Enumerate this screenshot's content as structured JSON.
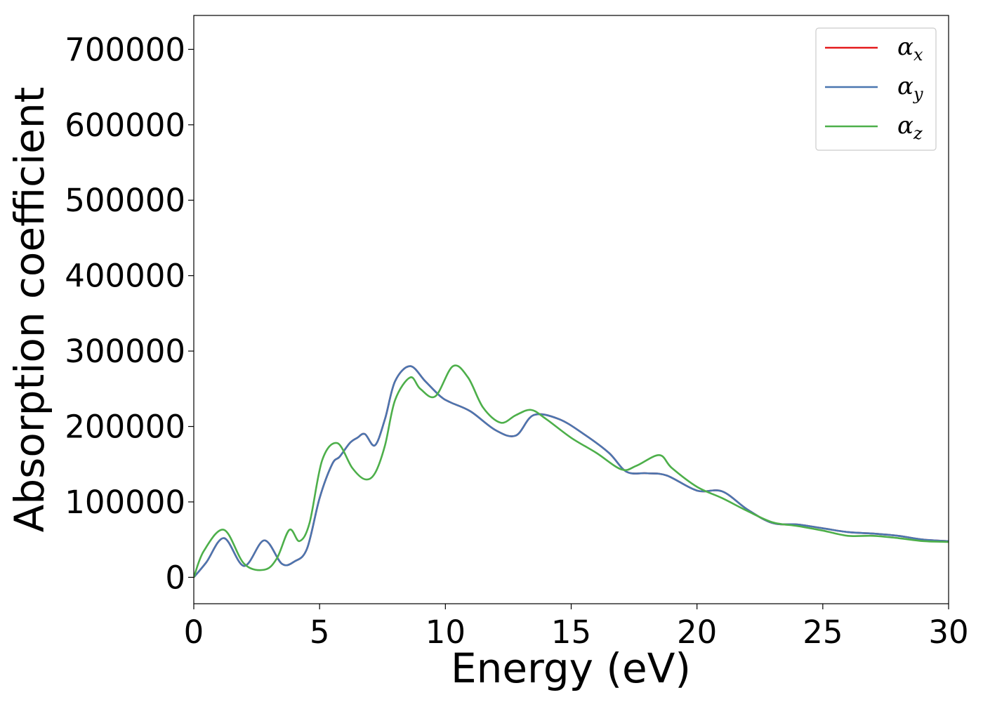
{
  "chart_data": {
    "type": "line",
    "title": "",
    "xlabel": "Energy (eV)",
    "ylabel": "Absorption coefficient",
    "xlim": [
      0,
      30
    ],
    "ylim": [
      -35000,
      745000
    ],
    "xticks": [
      0,
      5,
      10,
      15,
      20,
      25,
      30
    ],
    "xtick_labels": [
      "0",
      "5",
      "10",
      "15",
      "20",
      "25",
      "30"
    ],
    "yticks": [
      0,
      100000,
      200000,
      300000,
      400000,
      500000,
      600000,
      700000
    ],
    "ytick_labels": [
      "0",
      "100000",
      "200000",
      "300000",
      "400000",
      "500000",
      "600000",
      "700000"
    ],
    "grid": false,
    "legend_position": "top-right",
    "series": [
      {
        "name": "α",
        "subscript": "x",
        "color": "#e41a1c",
        "x": [
          0,
          0.5,
          1.2,
          2.0,
          2.8,
          3.5,
          4.0,
          4.5,
          5.0,
          5.5,
          5.8,
          6.2,
          6.5,
          6.8,
          7.2,
          7.6,
          8.0,
          8.6,
          9.2,
          9.8,
          10.2,
          11.0,
          12.0,
          12.8,
          13.5,
          14.5,
          15.5,
          16.5,
          17.2,
          18.0,
          18.8,
          20.0,
          21.0,
          22.0,
          23.0,
          24.0,
          25.0,
          26.0,
          27.0,
          28.0,
          29.0,
          30.0
        ],
        "y": [
          0,
          20000,
          52000,
          15000,
          49000,
          18000,
          21000,
          38000,
          105000,
          150000,
          160000,
          178000,
          185000,
          190000,
          175000,
          210000,
          260000,
          280000,
          260000,
          240000,
          232000,
          220000,
          195000,
          188000,
          215000,
          210000,
          190000,
          165000,
          140000,
          138000,
          135000,
          115000,
          114000,
          90000,
          72000,
          70000,
          65000,
          60000,
          58000,
          55000,
          50000,
          48000
        ]
      },
      {
        "name": "α",
        "subscript": "y",
        "color": "#4a76b0",
        "x": [
          0,
          0.5,
          1.2,
          2.0,
          2.8,
          3.5,
          4.0,
          4.5,
          5.0,
          5.5,
          5.8,
          6.2,
          6.5,
          6.8,
          7.2,
          7.6,
          8.0,
          8.6,
          9.2,
          9.8,
          10.2,
          11.0,
          12.0,
          12.8,
          13.5,
          14.5,
          15.5,
          16.5,
          17.2,
          18.0,
          18.8,
          20.0,
          21.0,
          22.0,
          23.0,
          24.0,
          25.0,
          26.0,
          27.0,
          28.0,
          29.0,
          30.0
        ],
        "y": [
          0,
          20000,
          52000,
          15000,
          49000,
          18000,
          21000,
          38000,
          105000,
          150000,
          160000,
          178000,
          185000,
          190000,
          175000,
          210000,
          260000,
          280000,
          260000,
          240000,
          232000,
          220000,
          195000,
          188000,
          215000,
          210000,
          190000,
          165000,
          140000,
          138000,
          135000,
          115000,
          114000,
          90000,
          72000,
          70000,
          65000,
          60000,
          58000,
          55000,
          50000,
          48000
        ]
      },
      {
        "name": "α",
        "subscript": "z",
        "color": "#4daf4a",
        "x": [
          0,
          0.4,
          1.2,
          2.0,
          2.8,
          3.3,
          3.8,
          4.2,
          4.6,
          5.1,
          5.7,
          6.3,
          6.8,
          7.2,
          7.6,
          8.0,
          8.6,
          9.0,
          9.6,
          10.3,
          10.9,
          11.5,
          12.2,
          12.8,
          13.4,
          14.0,
          15.0,
          16.0,
          17.0,
          17.6,
          18.5,
          19.0,
          20.0,
          21.0,
          22.0,
          23.0,
          24.0,
          25.0,
          26.0,
          27.0,
          28.0,
          29.0,
          30.0
        ],
        "y": [
          0,
          35000,
          63000,
          18000,
          10000,
          25000,
          63000,
          48000,
          72000,
          155000,
          178000,
          145000,
          130000,
          138000,
          175000,
          235000,
          265000,
          250000,
          240000,
          280000,
          265000,
          225000,
          205000,
          215000,
          222000,
          210000,
          185000,
          165000,
          143000,
          148000,
          162000,
          145000,
          120000,
          105000,
          88000,
          73000,
          68000,
          62000,
          55000,
          55000,
          52000,
          48000,
          47000
        ]
      }
    ]
  }
}
